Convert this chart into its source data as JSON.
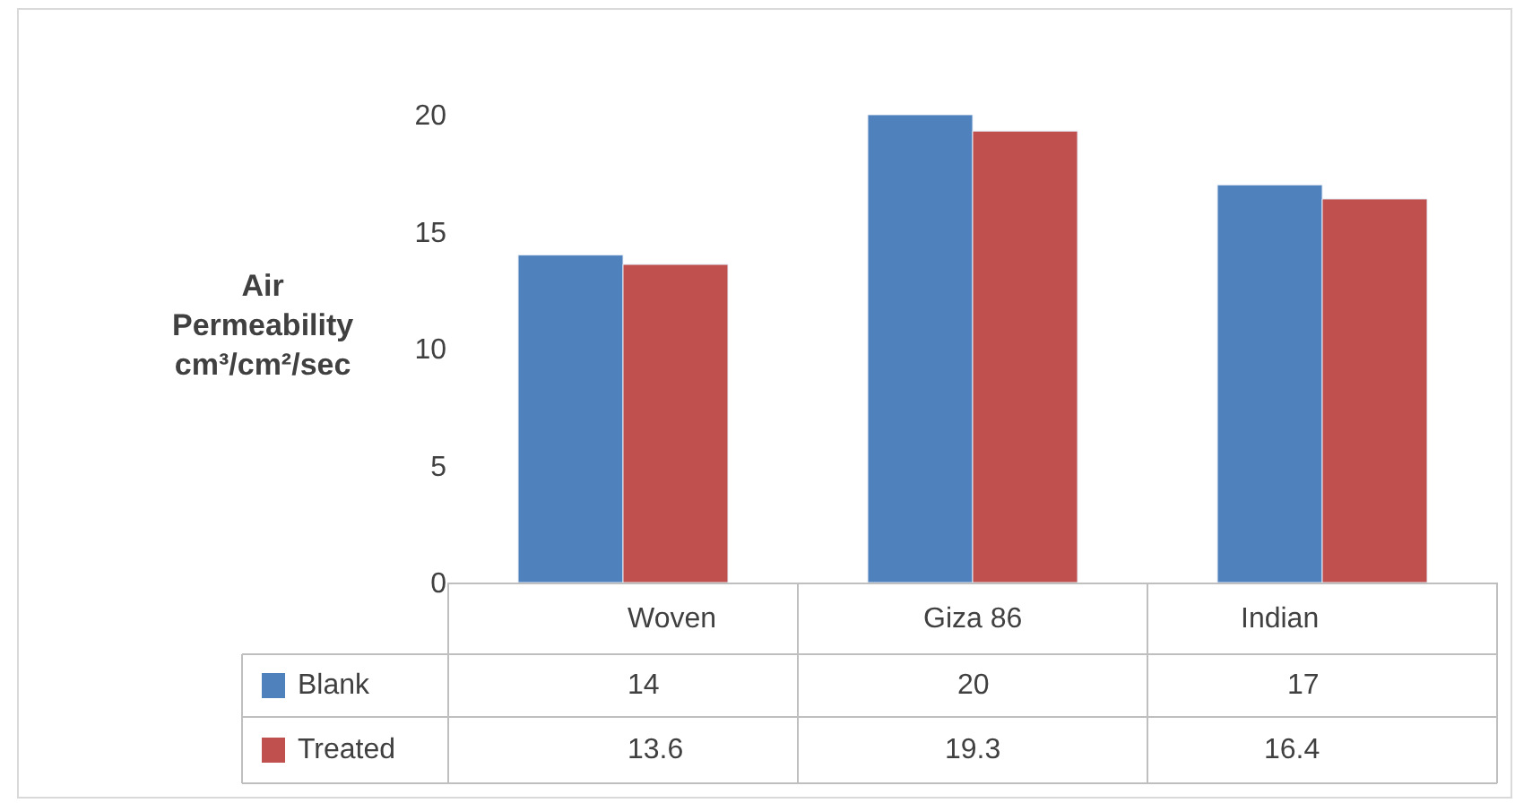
{
  "chart_data": {
    "type": "bar",
    "ylabel": "Air Permeability cm³/cm²/sec",
    "categories": [
      "Woven",
      "Giza 86",
      "Indian"
    ],
    "series": [
      {
        "name": "Blank",
        "color": "#4f81bd",
        "values": [
          14,
          20,
          17
        ]
      },
      {
        "name": "Treated",
        "color": "#c0504d",
        "values": [
          13.6,
          19.3,
          16.4
        ],
        "value_labels": [
          "13.6",
          "19.3",
          "16.4"
        ]
      }
    ],
    "ylim": [
      0,
      20
    ],
    "yticks": [
      0,
      5,
      10,
      15,
      20
    ],
    "legend": "bottom",
    "data_labels": true
  }
}
